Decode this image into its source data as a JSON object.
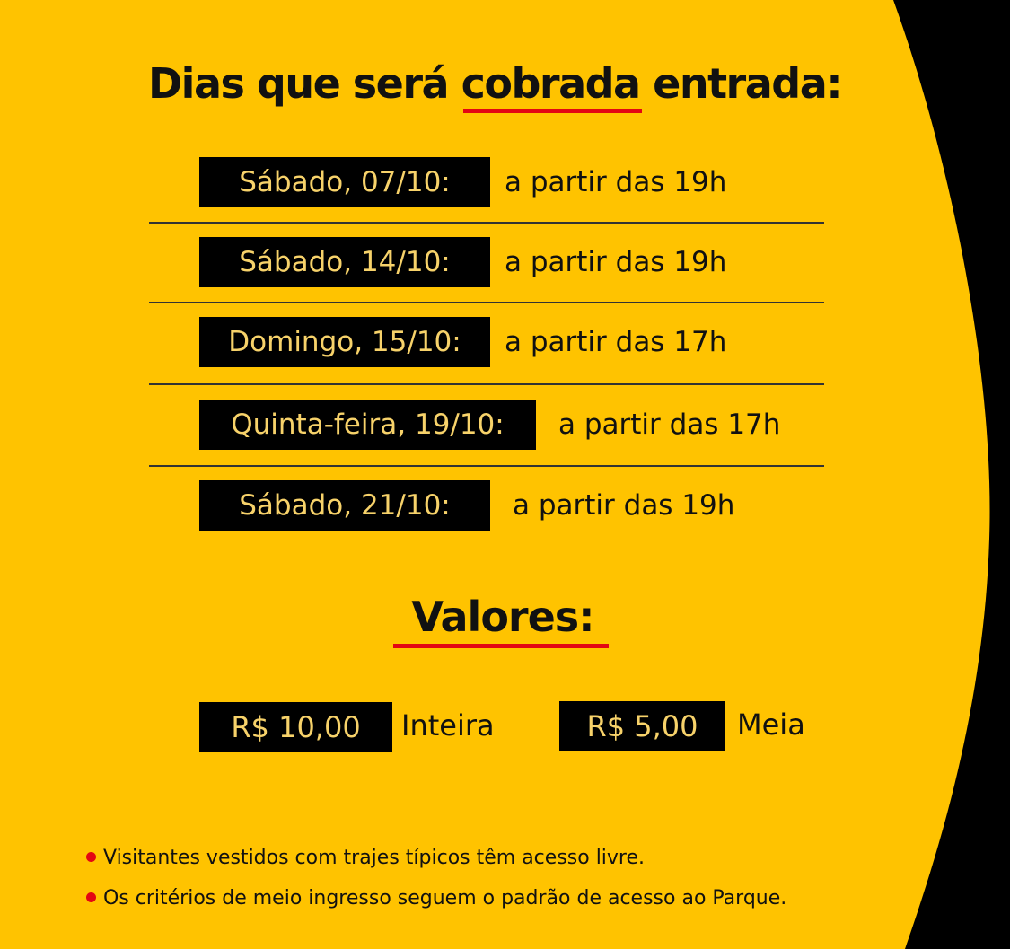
{
  "colors": {
    "background": "#FFC300",
    "black": "#000000",
    "accent_red": "#E30613",
    "box_text": "#F7D26A"
  },
  "title": {
    "before": "Dias que será ",
    "highlight": "cobrada",
    "after": " entrada:"
  },
  "schedule": [
    {
      "day": "Sábado, 07/10:",
      "time": "a partir das 19h"
    },
    {
      "day": "Sábado, 14/10:",
      "time": "a partir das 19h"
    },
    {
      "day": "Domingo, 15/10:",
      "time": "a partir das 17h"
    },
    {
      "day": "Quinta-feira, 19/10:",
      "time": "a partir das 17h"
    },
    {
      "day": "Sábado, 21/10:",
      "time": "a partir das 19h"
    }
  ],
  "valores": {
    "heading": "Valores:",
    "prices": [
      {
        "amount": "R$ 10,00",
        "label": "Inteira"
      },
      {
        "amount": "R$ 5,00",
        "label": "Meia"
      }
    ]
  },
  "notes": [
    "Visitantes vestidos com trajes típicos têm acesso livre.",
    "Os critérios de meio ingresso seguem o padrão de acesso ao Parque."
  ]
}
